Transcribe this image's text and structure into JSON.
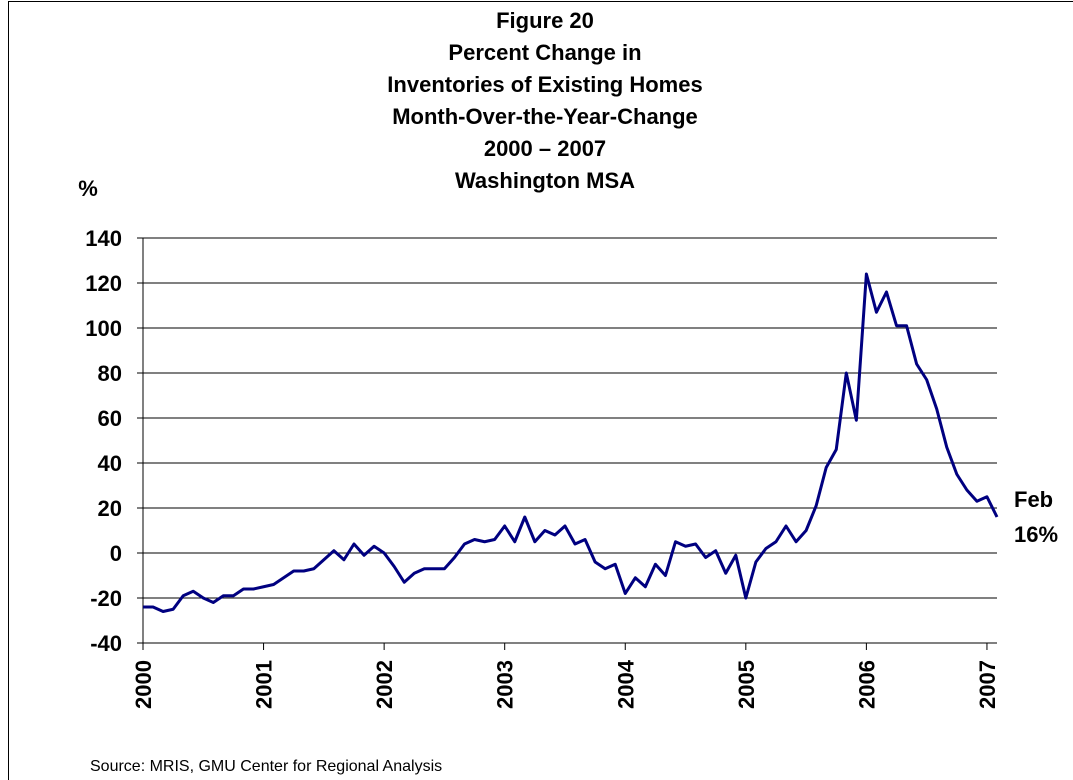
{
  "chart_data": {
    "type": "line",
    "title": [
      "Figure 20",
      "Percent Change in",
      "Inventories of Existing Homes",
      "Month-Over-the-Year-Change",
      "2000 – 2007",
      "Washington MSA"
    ],
    "y_label": "%",
    "source": "Source: MRIS, GMU Center for Regional Analysis",
    "annotation": [
      "Feb",
      "16%"
    ],
    "categories": [
      "2000",
      null,
      null,
      null,
      null,
      null,
      null,
      null,
      null,
      null,
      null,
      null,
      "2001",
      null,
      null,
      null,
      null,
      null,
      null,
      null,
      null,
      null,
      null,
      null,
      "2002",
      null,
      null,
      null,
      null,
      null,
      null,
      null,
      null,
      null,
      null,
      null,
      "2003",
      null,
      null,
      null,
      null,
      null,
      null,
      null,
      null,
      null,
      null,
      null,
      "2004",
      null,
      null,
      null,
      null,
      null,
      null,
      null,
      null,
      null,
      null,
      null,
      "2005",
      null,
      null,
      null,
      null,
      null,
      null,
      null,
      null,
      null,
      null,
      null,
      "2006",
      null,
      null,
      null,
      null,
      null,
      null,
      null,
      null,
      null,
      null,
      null,
      "2007",
      null
    ],
    "series": [
      {
        "color": "#000080",
        "values": [
          -24,
          -24,
          -26,
          -25,
          -19,
          -17,
          -20,
          -22,
          -19,
          -19,
          -16,
          -16,
          -15,
          -14,
          -11,
          -8,
          -8,
          -7,
          -3,
          1,
          -3,
          4,
          -1,
          3,
          0,
          -6,
          -13,
          -9,
          -7,
          -7,
          -7,
          -2,
          4,
          6,
          5,
          6,
          12,
          5,
          16,
          5,
          10,
          8,
          12,
          4,
          6,
          -4,
          -7,
          -5,
          -18,
          -11,
          -15,
          -5,
          -10,
          5,
          3,
          4,
          -2,
          1,
          -9,
          -1,
          -20,
          -4,
          2,
          5,
          12,
          5,
          10,
          21,
          38,
          46,
          80,
          59,
          124,
          107,
          116,
          101,
          101,
          84,
          77,
          64,
          47,
          35,
          28,
          23,
          25,
          16
        ]
      }
    ],
    "ylim": [
      -40,
      140
    ],
    "yticks": [
      -40,
      -20,
      0,
      20,
      40,
      60,
      80,
      100,
      120,
      140
    ],
    "grid": true
  }
}
